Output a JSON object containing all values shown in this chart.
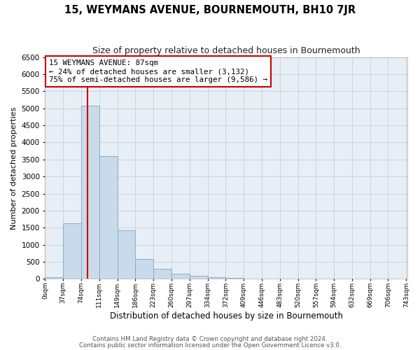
{
  "title": "15, WEYMANS AVENUE, BOURNEMOUTH, BH10 7JR",
  "subtitle": "Size of property relative to detached houses in Bournemouth",
  "xlabel": "Distribution of detached houses by size in Bournemouth",
  "ylabel": "Number of detached properties",
  "bar_color": "#c9daea",
  "bar_edge_color": "#7aaac8",
  "background_color": "#ffffff",
  "plot_bg_color": "#e8eef5",
  "grid_color": "#c8cfd8",
  "annotation_line_color": "#cc0000",
  "annotation_box_edge_color": "#cc0000",
  "bin_labels": [
    "0sqm",
    "37sqm",
    "74sqm",
    "111sqm",
    "149sqm",
    "186sqm",
    "223sqm",
    "260sqm",
    "297sqm",
    "334sqm",
    "372sqm",
    "409sqm",
    "446sqm",
    "483sqm",
    "520sqm",
    "557sqm",
    "594sqm",
    "632sqm",
    "669sqm",
    "706sqm",
    "743sqm"
  ],
  "bar_values": [
    50,
    1620,
    5080,
    3600,
    1420,
    580,
    300,
    145,
    100,
    50,
    30,
    0,
    0,
    0,
    0,
    0,
    0,
    0,
    0,
    0
  ],
  "ylim": [
    0,
    6500
  ],
  "yticks": [
    0,
    500,
    1000,
    1500,
    2000,
    2500,
    3000,
    3500,
    4000,
    4500,
    5000,
    5500,
    6000,
    6500
  ],
  "property_size_sqm": 87,
  "annotation_text_line1": "15 WEYMANS AVENUE: 87sqm",
  "annotation_text_line2": "← 24% of detached houses are smaller (3,132)",
  "annotation_text_line3": "75% of semi-detached houses are larger (9,586) →",
  "bin_width": 37,
  "xlim_max": 743,
  "footer_line1": "Contains HM Land Registry data © Crown copyright and database right 2024.",
  "footer_line2": "Contains public sector information licensed under the Open Government Licence v3.0."
}
